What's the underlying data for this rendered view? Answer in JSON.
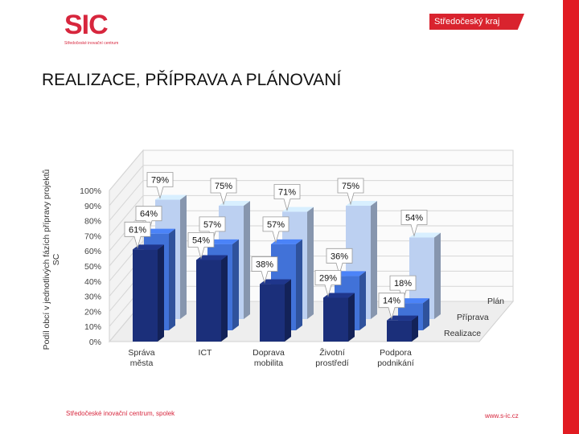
{
  "logo": {
    "mark": "SIC",
    "subtitle": "Středočeské inovační centrum"
  },
  "region": {
    "label": "Středočeský kraj"
  },
  "page": {
    "title": "REALIZACE, PŘÍPRAVA A PLÁNOVANÍ"
  },
  "footer": {
    "left": "Středočeské inovační centrum, spolek",
    "right": "www.s-ic.cz"
  },
  "colors": {
    "realizace": "#1b2f7a",
    "priprava": "#4172d8",
    "plan": "#bcd0f1",
    "accent": "#d9232e"
  },
  "chart_data": {
    "type": "bar",
    "categories": [
      [
        "Správa",
        "města"
      ],
      [
        "ICT"
      ],
      [
        "Doprava",
        "mobilita"
      ],
      [
        "Životní",
        "prostředí"
      ],
      [
        "Podpora",
        "podnikání"
      ]
    ],
    "series": [
      {
        "name": "Realizace",
        "values": [
          61,
          54,
          38,
          29,
          14
        ]
      },
      {
        "name": "Příprava",
        "values": [
          64,
          57,
          57,
          36,
          18
        ]
      },
      {
        "name": "Plán",
        "values": [
          79,
          75,
          71,
          75,
          54
        ]
      }
    ],
    "ylabel": "Podíl obcí v jednotlivých fázích přípravy projektů SC",
    "ylim": [
      0,
      100
    ],
    "yticks": [
      "0%",
      "10%",
      "20%",
      "30%",
      "40%",
      "50%",
      "60%",
      "70%",
      "80%",
      "90%",
      "100%"
    ],
    "grid": true,
    "legend": "right-depth"
  }
}
